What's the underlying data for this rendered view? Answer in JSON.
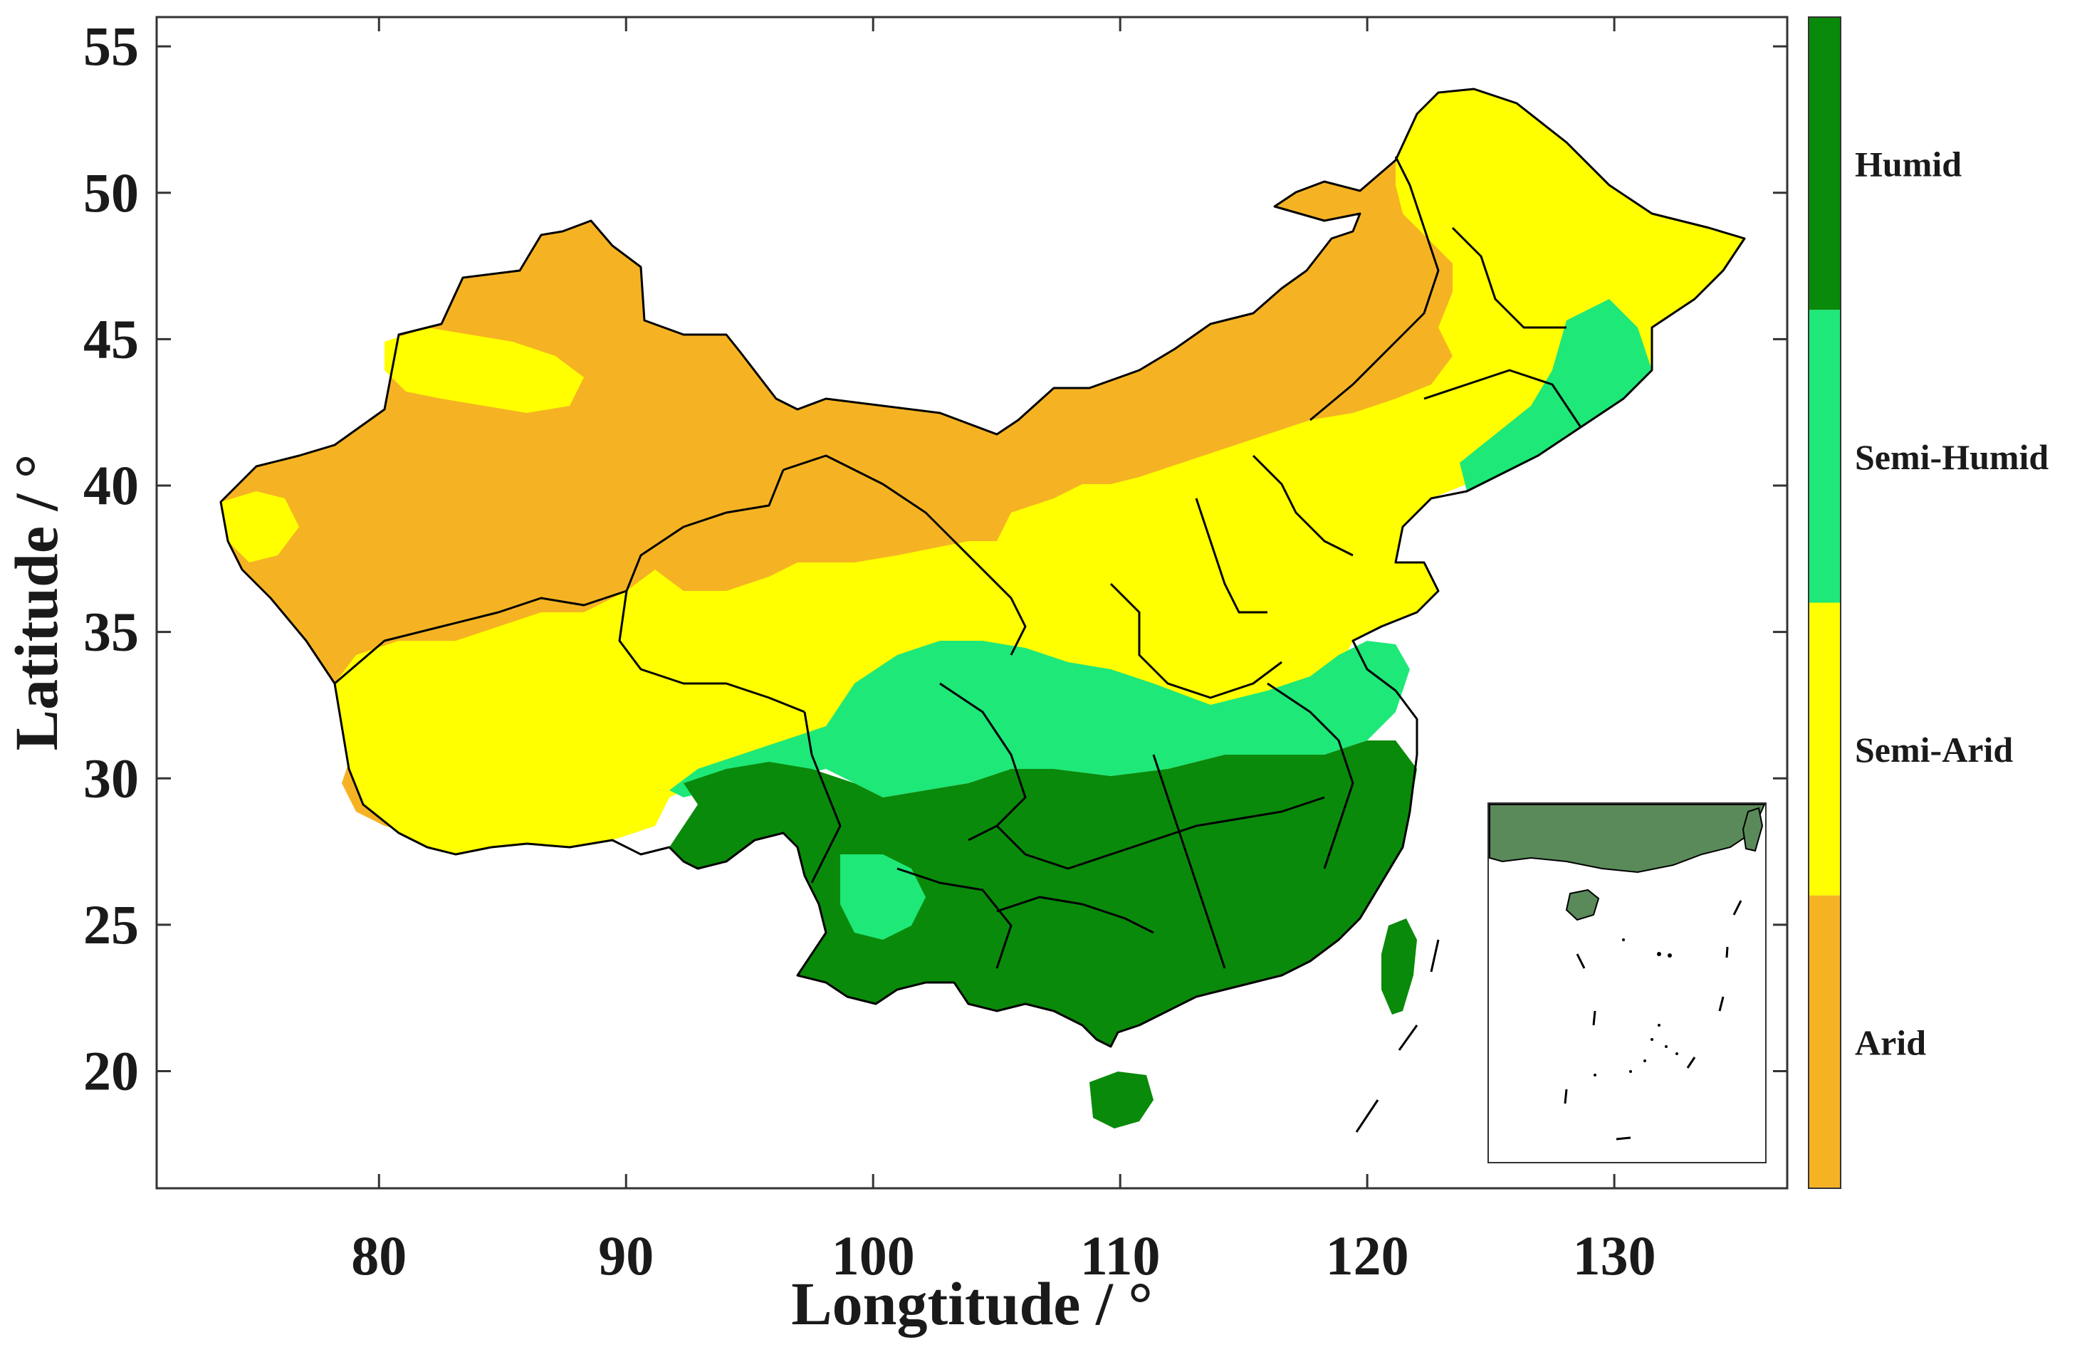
{
  "map": {
    "xlabel": "Longtitude / °",
    "ylabel": "Latitude / °",
    "x_ticks": [
      "80",
      "90",
      "100",
      "110",
      "120",
      "130"
    ],
    "y_ticks": [
      "55",
      "50",
      "45",
      "40",
      "35",
      "30",
      "25",
      "20"
    ],
    "x_range": [
      71,
      137
    ],
    "y_range": [
      16,
      56
    ],
    "has_inset": true
  },
  "legend": {
    "categories": [
      {
        "label": "Humid",
        "color": "#0a8a0a"
      },
      {
        "label": "Semi-Humid",
        "color": "#1ee878"
      },
      {
        "label": "Semi-Arid",
        "color": "#ffff00"
      },
      {
        "label": "Arid",
        "color": "#f5b324"
      }
    ]
  },
  "colors": {
    "humid": "#0a8a0a",
    "semi_humid": "#1ee878",
    "semi_arid": "#ffff00",
    "arid": "#f5b324",
    "border": "#000000"
  }
}
